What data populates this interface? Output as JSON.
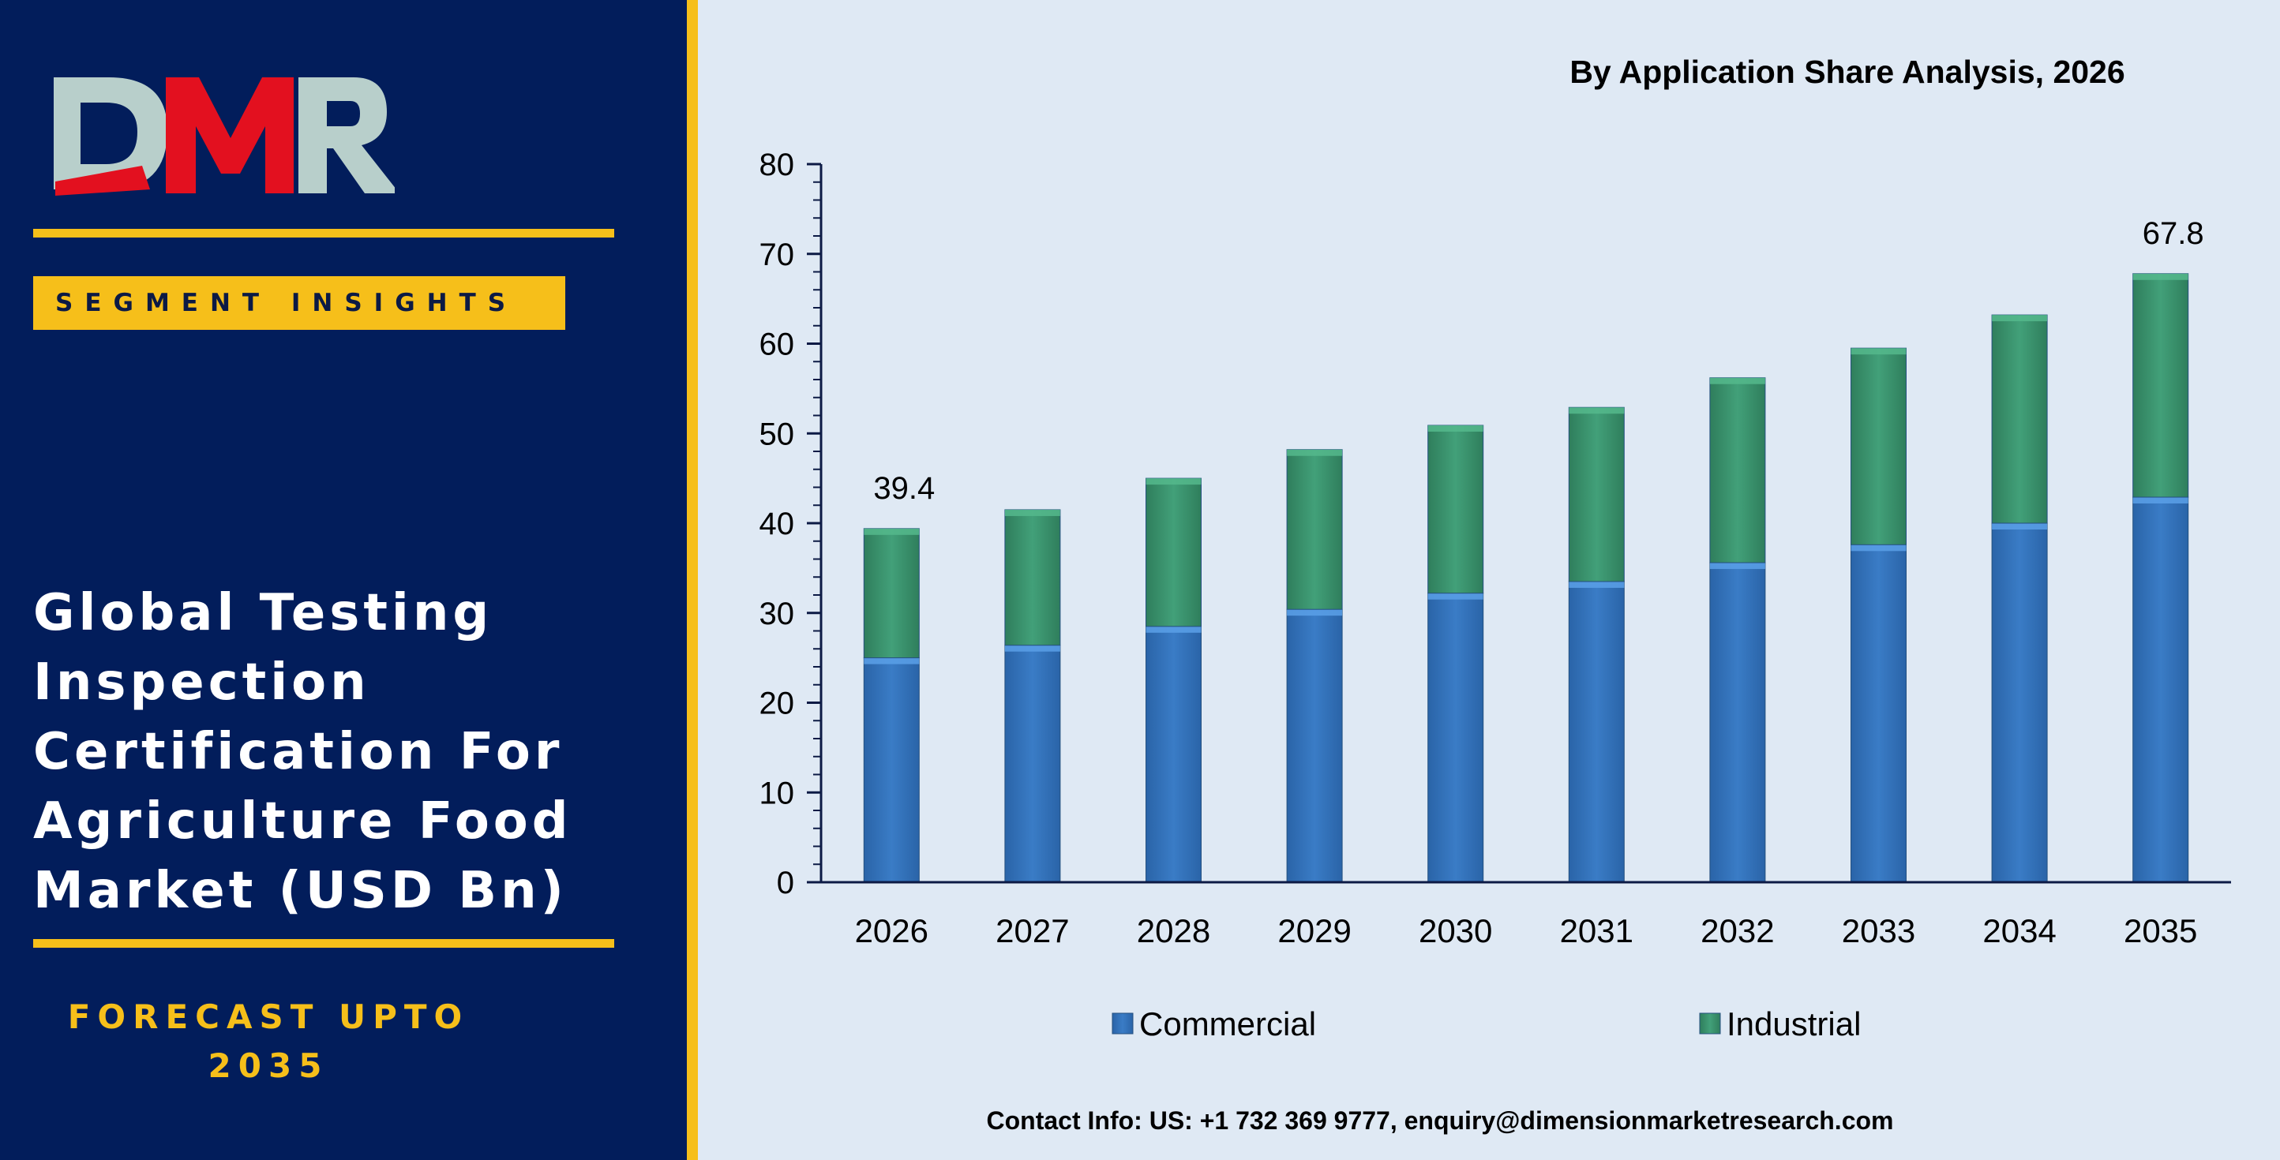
{
  "brand": {
    "logo_text": "DMR",
    "segment_label": "SEGMENT INSIGHTS",
    "colors": {
      "navy": "#021d5b",
      "yellow": "#f6bf1a",
      "logo_red": "#e3101f",
      "logo_grey": "#b8cfcb"
    }
  },
  "panel": {
    "title_lines": [
      "Global Testing",
      "Inspection",
      "Certification For",
      "Agriculture Food",
      "Market (USD Bn)"
    ],
    "forecast_line1": "FORECAST UPTO",
    "forecast_line2": "2035"
  },
  "contact": "Contact Info: US: +1 732 369 9777, enquiry@dimensionmarketresearch.com",
  "chart_data": {
    "type": "bar",
    "stacked": true,
    "title": "By Application Share Analysis, 2026",
    "categories": [
      "2026",
      "2027",
      "2028",
      "2029",
      "2030",
      "2031",
      "2032",
      "2033",
      "2034",
      "2035"
    ],
    "series": [
      {
        "name": "Commercial",
        "color": "#3a7cc6",
        "values": [
          25.0,
          26.4,
          28.5,
          30.4,
          32.2,
          33.5,
          35.6,
          37.6,
          40.0,
          42.9
        ]
      },
      {
        "name": "Industrial",
        "color": "#3f9b74",
        "values": [
          14.4,
          15.1,
          16.5,
          17.8,
          18.7,
          19.4,
          20.6,
          21.9,
          23.2,
          24.9
        ]
      }
    ],
    "data_labels": [
      {
        "category": "2026",
        "text": "39.4"
      },
      {
        "category": "2035",
        "text": "67.8"
      }
    ],
    "yticks": [
      "0",
      "10",
      "20",
      "30",
      "40",
      "50",
      "60",
      "70",
      "80"
    ],
    "ylim": [
      0,
      80
    ],
    "grid": false,
    "legend_position": "bottom"
  }
}
